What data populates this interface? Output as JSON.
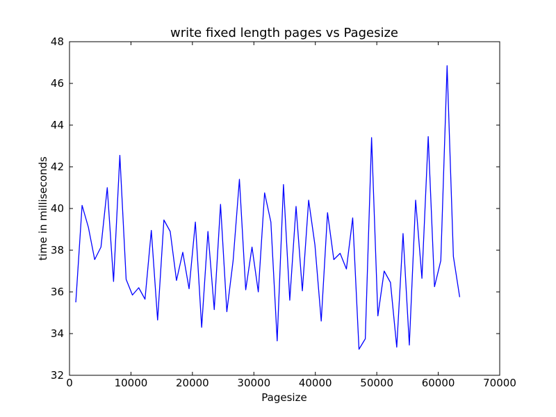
{
  "chart_data": {
    "type": "line",
    "title": "write fixed length pages vs Pagesize",
    "xlabel": "Pagesize",
    "ylabel": "time in milliseconds",
    "xlim": [
      0,
      70000
    ],
    "ylim": [
      32,
      48
    ],
    "xticks": [
      0,
      10000,
      20000,
      30000,
      40000,
      50000,
      60000,
      70000
    ],
    "yticks": [
      32,
      34,
      36,
      38,
      40,
      42,
      44,
      46,
      48
    ],
    "grid": false,
    "legend": "none",
    "series": [
      {
        "color": "#0000ff",
        "x": [
          1024,
          2048,
          3072,
          4096,
          5120,
          6144,
          7168,
          8192,
          9216,
          10240,
          11264,
          12288,
          13312,
          14336,
          15360,
          16384,
          17408,
          18432,
          19456,
          20480,
          21504,
          22528,
          23552,
          24576,
          25600,
          26624,
          27648,
          28672,
          29696,
          30720,
          31744,
          32768,
          33792,
          34816,
          35840,
          36864,
          37888,
          38912,
          39936,
          40960,
          41984,
          43008,
          44032,
          45056,
          46080,
          47104,
          48128,
          49152,
          50176,
          51200,
          52224,
          53248,
          54272,
          55296,
          56320,
          57344,
          58368,
          59392,
          60416,
          61440,
          62464,
          63488
        ],
        "y": [
          35.5,
          40.15,
          39.1,
          37.55,
          38.15,
          41.0,
          36.5,
          42.55,
          36.6,
          35.85,
          36.2,
          35.65,
          38.95,
          34.65,
          39.45,
          38.9,
          36.55,
          37.9,
          36.15,
          39.35,
          34.3,
          38.9,
          35.15,
          40.2,
          35.05,
          37.5,
          41.4,
          36.1,
          38.15,
          36.0,
          40.75,
          39.35,
          33.65,
          41.15,
          35.6,
          40.1,
          36.05,
          40.4,
          38.25,
          34.6,
          39.8,
          37.55,
          37.85,
          37.1,
          39.55,
          33.25,
          33.75,
          43.4,
          34.85,
          37.0,
          36.45,
          33.35,
          38.8,
          33.45,
          40.4,
          36.65,
          43.45,
          36.25,
          37.5,
          46.85,
          37.7,
          35.75
        ]
      }
    ]
  }
}
